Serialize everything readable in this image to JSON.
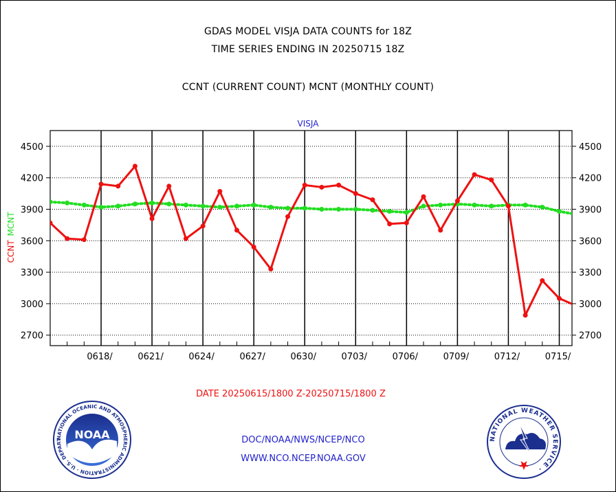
{
  "titles": {
    "line1": "GDAS MODEL VISJA DATA COUNTS for 18Z",
    "line2": "TIME SERIES ENDING IN 20250715 18Z",
    "line3": "CCNT (CURRENT COUNT) MCNT (MONTHLY COUNT)"
  },
  "footer": {
    "date_range": "DATE 20250615/1800 Z-20250715/1800 Z",
    "org": "DOC/NOAA/NWS/NCEP/NCO",
    "url": "WWW.NCO.NCEP.NOAA.GOV",
    "noaa_logo": {
      "text": "NOAA",
      "ring_text": "NATIONAL OCEANIC AND ATMOSPHERIC ADMINISTRATION · U.S. DEPARTMENT OF COMMERCE ·"
    },
    "nws_logo": {
      "ring_text": "NATIONAL WEATHER SERVICE ·"
    }
  },
  "colors": {
    "ccnt": "#ee1111",
    "mcnt": "#22dd22",
    "label_blue": "#2222cc",
    "date_red": "#ee1111"
  },
  "chart_data": {
    "type": "line",
    "title": "VISJA",
    "ylabel_left": "CCNT",
    "ylabel_left2": "MCNT",
    "ylim": [
      2600,
      4650
    ],
    "yticks": [
      2700,
      3000,
      3300,
      3600,
      3900,
      4200,
      4500
    ],
    "x_range": [
      "2025-06-15",
      "2025-07-15"
    ],
    "xtick_dates": [
      "2025-06-18",
      "2025-06-21",
      "2025-06-24",
      "2025-06-27",
      "2025-06-30",
      "2025-07-03",
      "2025-07-06",
      "2025-07-09",
      "2025-07-12",
      "2025-07-15"
    ],
    "xtick_labels": [
      "0618/",
      "0621/",
      "0624/",
      "0627/",
      "0630/",
      "0703/",
      "0706/",
      "0709/",
      "0712/",
      "0715/"
    ],
    "grid": true,
    "series": [
      {
        "name": "CCNT",
        "dates": [
          "2025-06-15",
          "2025-06-16",
          "2025-06-17",
          "2025-06-18",
          "2025-06-19",
          "2025-06-20",
          "2025-06-21",
          "2025-06-22",
          "2025-06-23",
          "2025-06-24",
          "2025-06-25",
          "2025-06-26",
          "2025-06-27",
          "2025-06-28",
          "2025-06-29",
          "2025-06-30",
          "2025-07-01",
          "2025-07-02",
          "2025-07-03",
          "2025-07-04",
          "2025-07-05",
          "2025-07-06",
          "2025-07-07",
          "2025-07-08",
          "2025-07-09",
          "2025-07-10",
          "2025-07-11",
          "2025-07-12",
          "2025-07-13",
          "2025-07-14",
          "2025-07-15",
          "2025-07-16"
        ],
        "values": [
          3770,
          3620,
          3610,
          4140,
          4120,
          4310,
          3810,
          4120,
          3620,
          3740,
          4070,
          3700,
          3540,
          3330,
          3830,
          4130,
          4110,
          4130,
          4050,
          3990,
          3760,
          3770,
          4020,
          3700,
          3980,
          4230,
          4180,
          3930,
          2890,
          3220,
          3050,
          2980
        ]
      },
      {
        "name": "MCNT",
        "dates": [
          "2025-06-15",
          "2025-06-16",
          "2025-06-17",
          "2025-06-18",
          "2025-06-19",
          "2025-06-20",
          "2025-06-21",
          "2025-06-22",
          "2025-06-23",
          "2025-06-24",
          "2025-06-25",
          "2025-06-26",
          "2025-06-27",
          "2025-06-28",
          "2025-06-29",
          "2025-06-30",
          "2025-07-01",
          "2025-07-02",
          "2025-07-03",
          "2025-07-04",
          "2025-07-05",
          "2025-07-06",
          "2025-07-07",
          "2025-07-08",
          "2025-07-09",
          "2025-07-10",
          "2025-07-11",
          "2025-07-12",
          "2025-07-13",
          "2025-07-14",
          "2025-07-15",
          "2025-07-16"
        ],
        "values": [
          3970,
          3960,
          3940,
          3920,
          3930,
          3950,
          3960,
          3950,
          3940,
          3930,
          3920,
          3930,
          3940,
          3920,
          3910,
          3910,
          3900,
          3900,
          3900,
          3890,
          3880,
          3870,
          3930,
          3940,
          3950,
          3940,
          3930,
          3940,
          3940,
          3920,
          3880,
          3850
        ]
      }
    ]
  }
}
